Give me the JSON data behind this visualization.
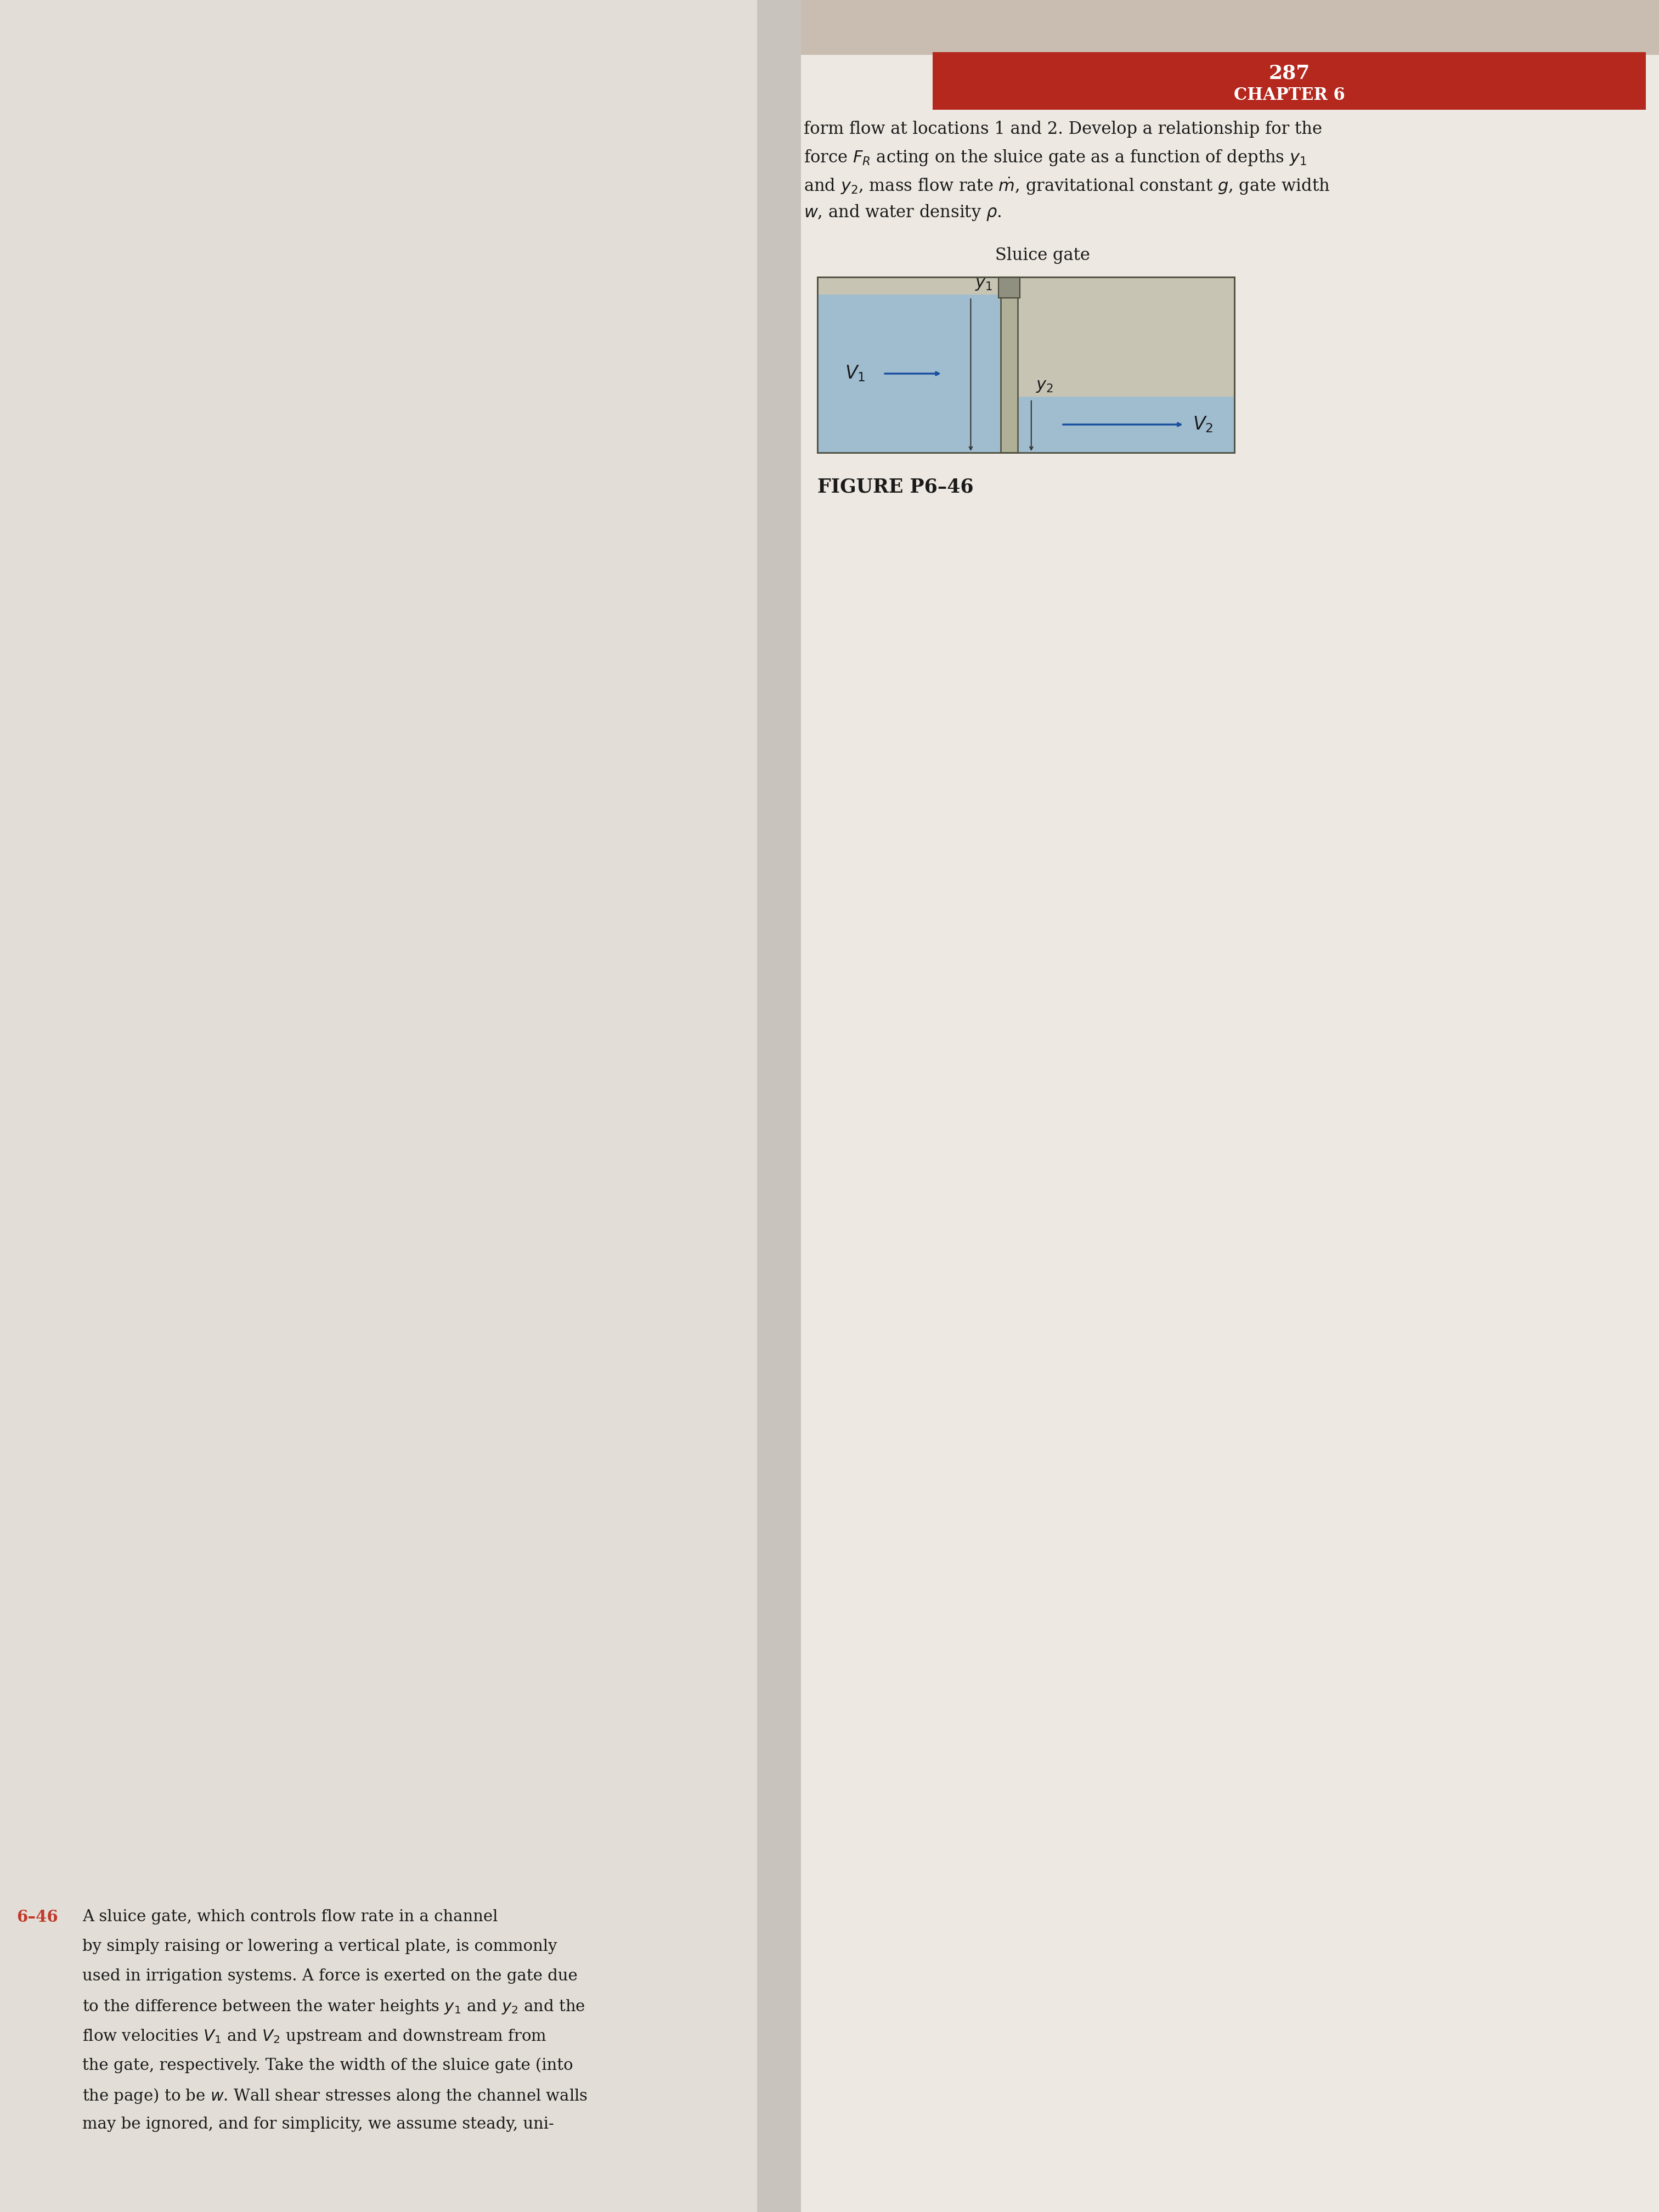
{
  "page_number": "287",
  "chapter": "CHAPTER 6",
  "header_bg": "#b5281e",
  "header_text_color": "#ffffff",
  "left_bg": "#e8e3dc",
  "right_bg": "#ede8e1",
  "binding_bg": "#ccc7c0",
  "top_bg": "#d8d0c8",
  "sluice_gate_label": "Sluice gate",
  "figure_caption": "FIGURE P6–46",
  "water_color": "#9bbdd4",
  "gate_color": "#c0c0a8",
  "channel_wall_color": "#888878",
  "arrow_color": "#1a50a0",
  "text_color": "#1a1a1a",
  "red_text_color": "#c0392b",
  "top_text_lines": [
    "form flow at locations 1 and 2. Develop a relationship for the",
    "force $F_R$ acting on the sluice gate as a function of depths $y_1$",
    "and $y_2$, mass flow rate $\\dot{m}$, gravitational constant $g$, gate width",
    "$w$, and water density $\\rho$."
  ],
  "bottom_text_lines": [
    "A sluice gate, which controls flow rate in a channel",
    "by simply raising or lowering a vertical plate, is commonly",
    "used in irrigation systems. A force is exerted on the gate due",
    "to the difference between the water heights $y_1$ and $y_2$ and the",
    "flow velocities $V_1$ and $V_2$ upstream and downstream from",
    "the gate, respectively. Take the width of the sluice gate (into",
    "the page) to be $w$. Wall shear stresses along the channel walls",
    "may be ignored, and for simplicity, we assume steady, uni-"
  ]
}
